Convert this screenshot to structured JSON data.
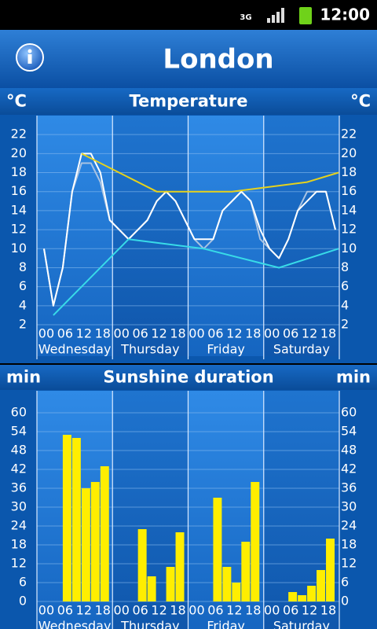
{
  "status_bar": {
    "network": "3G",
    "time": "12:00"
  },
  "header": {
    "title": "London"
  },
  "chart_data": [
    {
      "type": "line",
      "title": "Temperature",
      "unit": "°C",
      "days": [
        "Wednesday",
        "Thursday",
        "Friday",
        "Saturday"
      ],
      "xlim": [
        -2.25,
        94.25
      ],
      "xticks": [
        {
          "value": 0,
          "label": "00"
        },
        {
          "value": 6,
          "label": "06"
        },
        12,
        18,
        {
          "value": 24,
          "label": "00"
        },
        {
          "value": 30,
          "label": "06"
        },
        {
          "value": 36,
          "label": "12"
        },
        {
          "value": 42,
          "label": "18"
        },
        {
          "value": 48,
          "label": "00"
        },
        {
          "value": 54,
          "label": "06"
        },
        {
          "value": 60,
          "label": "12"
        },
        {
          "value": 66,
          "label": "18"
        },
        {
          "value": 72,
          "label": "00"
        },
        {
          "value": 78,
          "label": "06"
        },
        {
          "value": 84,
          "label": "12"
        },
        {
          "value": 90,
          "label": "18"
        }
      ],
      "ylim": [
        2,
        24
      ],
      "yticks": [
        2,
        4,
        6,
        8,
        10,
        12,
        14,
        16,
        18,
        20,
        22
      ],
      "grid": true,
      "series": [
        {
          "color": "#a9c3e2",
          "x": [
            0,
            3,
            6,
            9,
            12,
            15,
            18,
            21,
            24,
            27,
            30,
            33,
            36,
            39,
            42,
            45,
            48,
            51,
            54,
            57,
            60,
            63,
            66,
            69,
            72,
            75,
            78,
            81,
            84,
            87,
            90,
            93
          ],
          "values": [
            10,
            4,
            8,
            16,
            19,
            19,
            17,
            13,
            12,
            11,
            12,
            13,
            15,
            16,
            15,
            13,
            11,
            10,
            11,
            14,
            15,
            16,
            15,
            11,
            10,
            9,
            11,
            14,
            16,
            16,
            16,
            12
          ]
        },
        {
          "color": "#ffffff",
          "x": [
            0,
            3,
            6,
            9,
            12,
            15,
            18,
            21,
            24,
            27,
            30,
            33,
            36,
            39,
            42,
            45,
            48,
            51,
            54,
            57,
            60,
            63,
            66,
            69,
            72,
            75,
            78,
            81,
            84,
            87,
            90,
            93
          ],
          "values": [
            10,
            4,
            8,
            16,
            20,
            20,
            18,
            13,
            12,
            11,
            12,
            13,
            15,
            16,
            15,
            13,
            11,
            11,
            11,
            14,
            15,
            16,
            15,
            12,
            10,
            9,
            11,
            14,
            15,
            16,
            16,
            12
          ]
        },
        {
          "color": "#e6d21c",
          "x": [
            12,
            36,
            60,
            84,
            94
          ],
          "values": [
            20,
            16,
            16,
            17,
            18
          ]
        },
        {
          "color": "#38dbe8",
          "x": [
            3,
            27,
            51,
            75,
            94
          ],
          "values": [
            3,
            11,
            10,
            8,
            10
          ]
        }
      ]
    },
    {
      "type": "bar",
      "title": "Sunshine duration",
      "unit": "min",
      "days": [
        "Wednesday",
        "Thursday",
        "Friday",
        "Saturday"
      ],
      "xlim": [
        -2.25,
        94.25
      ],
      "xticks": [
        {
          "value": 0,
          "label": "00"
        },
        {
          "value": 6,
          "label": "06"
        },
        12,
        18,
        {
          "value": 24,
          "label": "00"
        },
        {
          "value": 30,
          "label": "06"
        },
        {
          "value": 36,
          "label": "12"
        },
        {
          "value": 42,
          "label": "18"
        },
        {
          "value": 48,
          "label": "00"
        },
        {
          "value": 54,
          "label": "06"
        },
        {
          "value": 60,
          "label": "12"
        },
        {
          "value": 66,
          "label": "18"
        },
        {
          "value": 72,
          "label": "00"
        },
        {
          "value": 78,
          "label": "06"
        },
        {
          "value": 84,
          "label": "12"
        },
        {
          "value": 90,
          "label": "18"
        }
      ],
      "ylim": [
        0,
        67
      ],
      "yticks": [
        0,
        6,
        12,
        18,
        24,
        30,
        36,
        42,
        48,
        54,
        60
      ],
      "grid": true,
      "bar_hours": 3,
      "color": "#ffee00",
      "x": [
        6,
        9,
        12,
        15,
        18,
        30,
        33,
        39,
        42,
        54,
        57,
        60,
        63,
        66,
        78,
        81,
        84,
        87,
        90
      ],
      "values": [
        53,
        52,
        36,
        38,
        43,
        23,
        8,
        11,
        22,
        33,
        11,
        6,
        19,
        38,
        3,
        2,
        5,
        10,
        20
      ]
    }
  ]
}
